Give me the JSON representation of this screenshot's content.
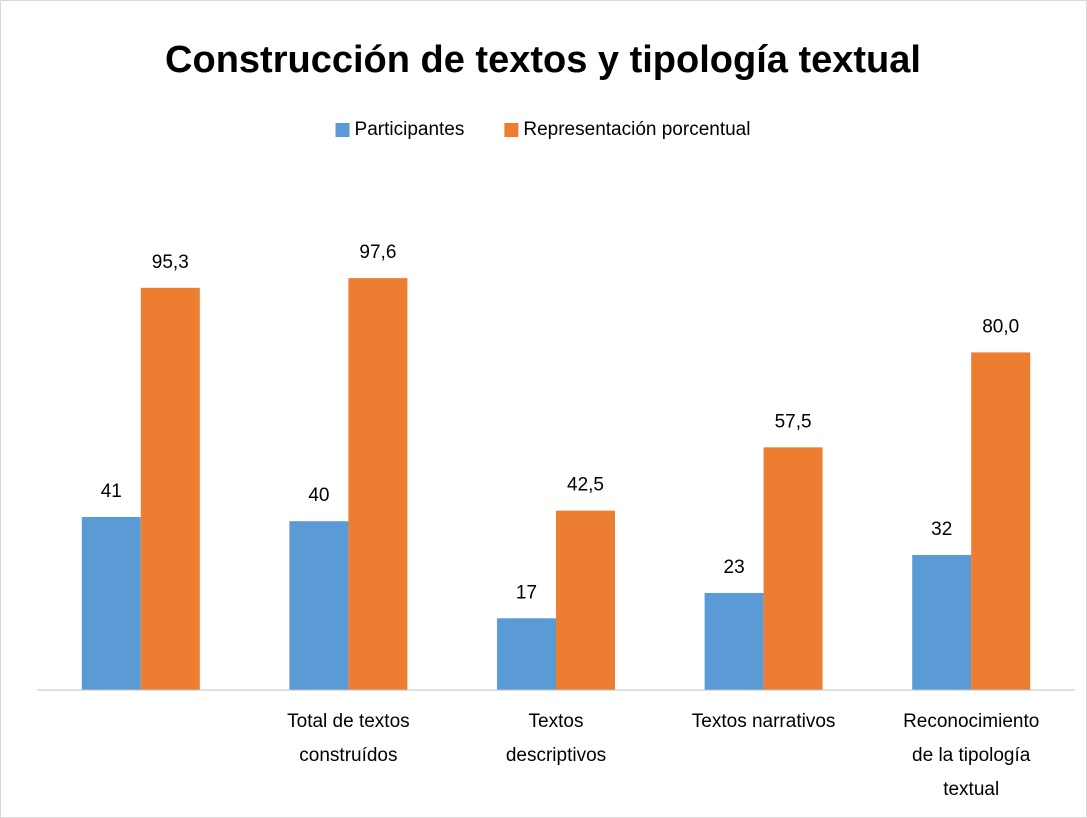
{
  "chart_data": {
    "type": "bar",
    "title": "Construcción de textos y tipología textual",
    "categories": [
      null,
      "Total de textos\nconstruídos",
      "Textos\ndescriptivos",
      "Textos narrativos",
      "Reconocimiento\nde la tipología\ntextual"
    ],
    "series": [
      {
        "name": "Participantes",
        "color": "#5b9bd5",
        "values": [
          41,
          40,
          17,
          23,
          32
        ]
      },
      {
        "name": "Representación porcentual",
        "color": "#ed7d31",
        "values": [
          95.3,
          97.6,
          42.5,
          57.5,
          80.0
        ],
        "value_labels": [
          "95,3",
          "97,6",
          "42,5",
          "57,5",
          "80,0"
        ]
      }
    ],
    "ylim": [
      0,
      100
    ],
    "legend": "top"
  }
}
